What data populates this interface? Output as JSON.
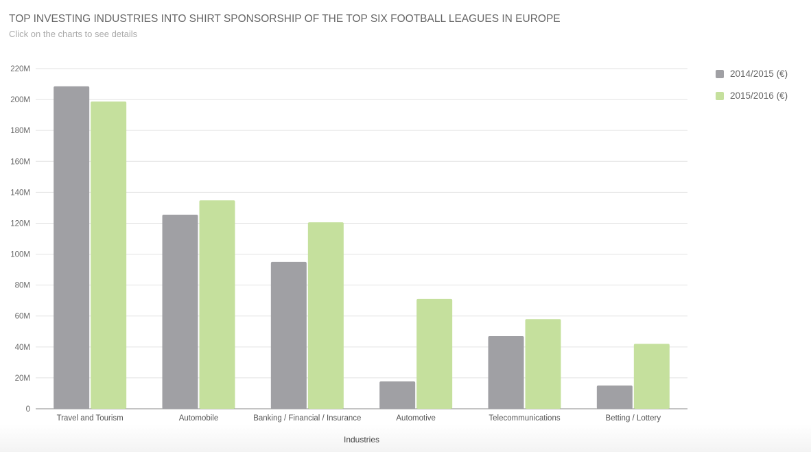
{
  "title": "TOP INVESTING INDUSTRIES INTO SHIRT SPONSORSHIP OF THE TOP SIX FOOTBALL LEAGUES IN EUROPE",
  "subtitle": "Click on the charts to see details",
  "chart_data": {
    "type": "bar",
    "title": "TOP INVESTING INDUSTRIES INTO SHIRT SPONSORSHIP OF THE TOP SIX FOOTBALL LEAGUES IN EUROPE",
    "xlabel": "Industries",
    "ylabel": "",
    "ylim": [
      0,
      220000000
    ],
    "yticks": [
      "0",
      "20M",
      "40M",
      "60M",
      "80M",
      "100M",
      "120M",
      "140M",
      "160M",
      "180M",
      "200M",
      "220M"
    ],
    "grid": true,
    "legend": "right",
    "categories": [
      "Travel and Tourism",
      "Automobile",
      "Banking / Financial / Insurance",
      "Automotive",
      "Telecommunications",
      "Betting / Lottery"
    ],
    "series": [
      {
        "name": "2014/2015 (€)",
        "color": "#a0a0a4",
        "values": [
          208500000,
          125500000,
          95000000,
          17700000,
          47000000,
          15000000
        ]
      },
      {
        "name": "2015/2016 (€)",
        "color": "#c5e09d",
        "values": [
          198700000,
          134800000,
          120600000,
          71000000,
          58000000,
          42000000
        ]
      }
    ]
  }
}
